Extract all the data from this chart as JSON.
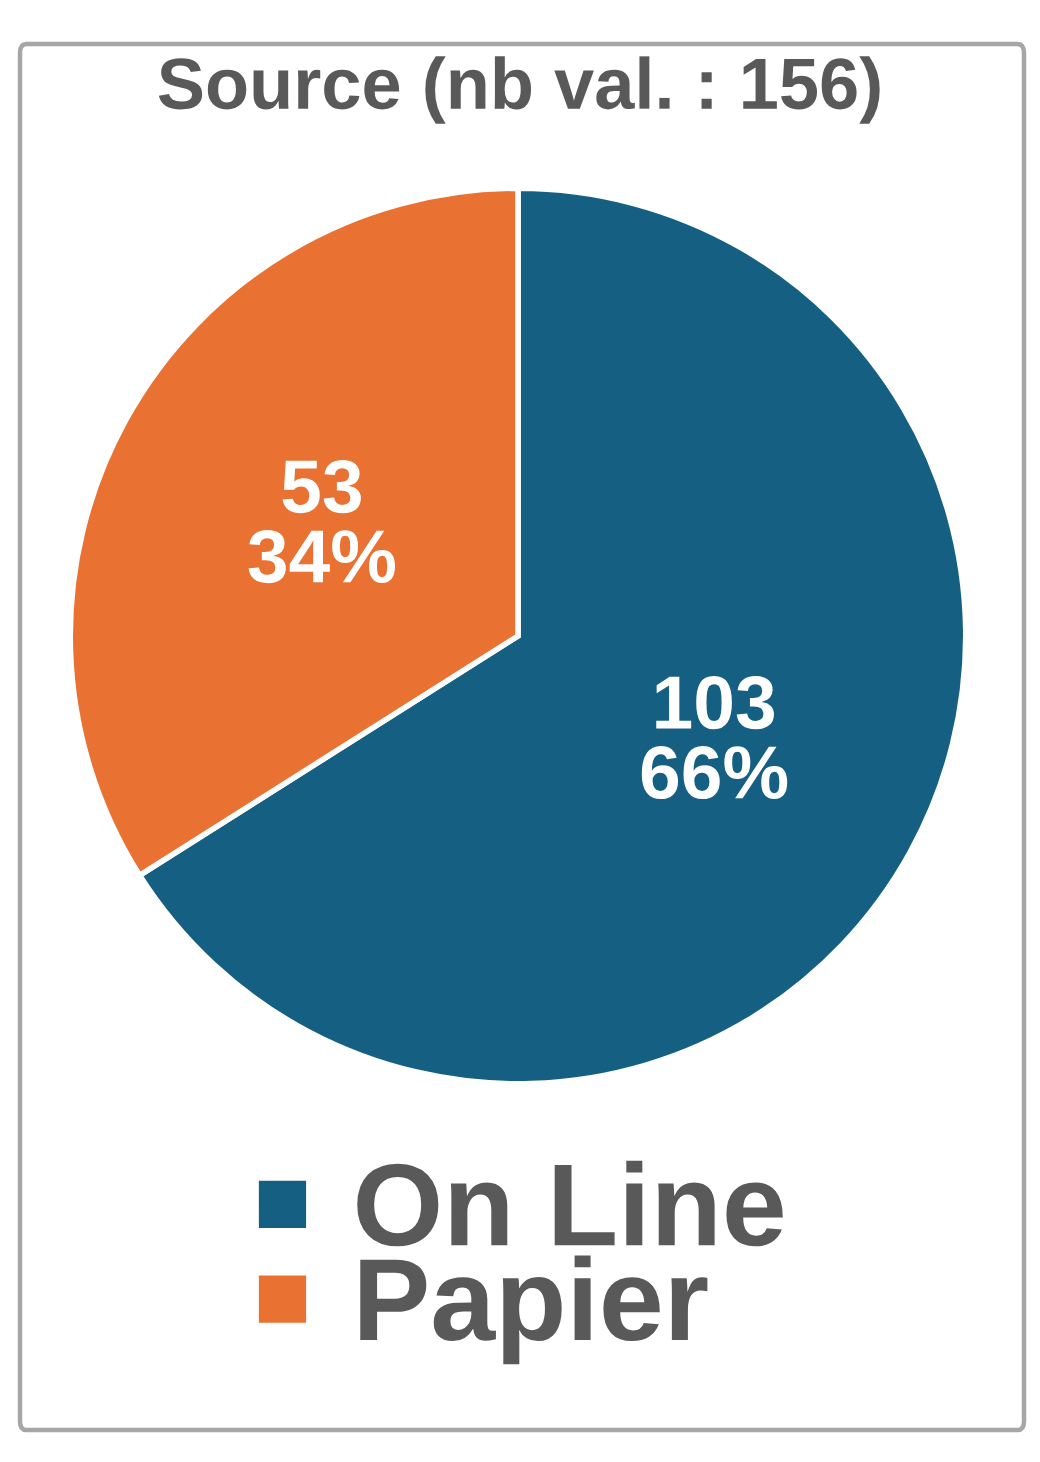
{
  "chart_data": {
    "type": "pie",
    "title": "Source (nb val. : 156)",
    "categories": [
      "On Line",
      "Papier"
    ],
    "values": [
      103,
      53
    ],
    "colors": [
      "#156082",
      "#e97132"
    ],
    "value_labels": [
      "103\n66%",
      "53\n34%"
    ],
    "legend": "bottom"
  }
}
